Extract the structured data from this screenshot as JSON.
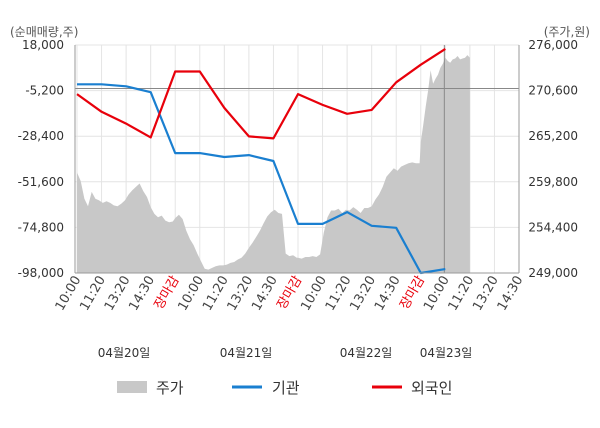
{
  "chart_data": {
    "type": "line",
    "y_left_unit": "(순매매량,주)",
    "y_right_unit": "(주가,원)",
    "y_left_ticks": [
      "18,000",
      "-5,200",
      "-28,400",
      "-51,600",
      "-74,800",
      "-98,000"
    ],
    "y_right_ticks": [
      "276,000",
      "270,600",
      "265,200",
      "259,800",
      "254,400",
      "249,000"
    ],
    "y_left_range": [
      -98000,
      18000
    ],
    "y_right_range": [
      249000,
      276000
    ],
    "x_tick_labels": [
      "10:00",
      "11:20",
      "13:20",
      "14:30",
      "장마감",
      "10:00",
      "11:20",
      "13:20",
      "14:30",
      "장마감",
      "10:00",
      "11:20",
      "13:20",
      "14:30",
      "장마감",
      "10:00",
      "11:20",
      "13:20",
      "14:30"
    ],
    "close_label": "장마감",
    "date_labels": [
      "04월20일",
      "04월21일",
      "04월22일",
      "04월23일"
    ],
    "legend": {
      "price": "주가",
      "institution": "기관",
      "foreign": "외국인"
    },
    "colors": {
      "price": "#c8c8c8",
      "institution": "#1a7fd0",
      "foreign": "#e8000b",
      "grid": "#e4e4e4",
      "close_label": "#e8000b"
    },
    "series": [
      {
        "name": "기관",
        "x": [
          0,
          1,
          2,
          3,
          4,
          5,
          6,
          7,
          8,
          9,
          10,
          11,
          12,
          13,
          14,
          15,
          16
        ],
        "values": [
          -2000,
          -2000,
          -3000,
          -6000,
          -37000,
          -37000,
          -39000,
          -38000,
          -41000,
          -73000,
          -73000,
          -67000,
          -74000,
          -75000,
          -98000,
          -96000,
          null
        ]
      },
      {
        "name": "외국인",
        "x": [
          0,
          1,
          2,
          3,
          4,
          5,
          6,
          7,
          8,
          9,
          10,
          11,
          12,
          13,
          14,
          15,
          16
        ],
        "values": [
          -7000,
          -16000,
          -22000,
          -29000,
          4500,
          4500,
          -14000,
          -28500,
          -29500,
          -7000,
          -12500,
          -17000,
          -15000,
          -1000,
          8000,
          16000,
          null
        ]
      }
    ],
    "price_series": {
      "name": "주가",
      "x": [
        0.0,
        0.15,
        0.3,
        0.45,
        0.6,
        0.75,
        0.9,
        1.05,
        1.2,
        1.35,
        1.5,
        1.65,
        1.8,
        1.95,
        2.1,
        2.25,
        2.4,
        2.55,
        2.7,
        2.85,
        3.0,
        3.15,
        3.3,
        3.45,
        3.6,
        3.75,
        3.9,
        4.0,
        4.15,
        4.3,
        4.45,
        4.6,
        4.75,
        4.9,
        5.05,
        5.2,
        5.35,
        5.5,
        5.65,
        5.8,
        5.95,
        6.1,
        6.25,
        6.4,
        6.55,
        6.7,
        6.85,
        7.0,
        7.15,
        7.3,
        7.45,
        7.6,
        7.75,
        7.9,
        8.05,
        8.2,
        8.35,
        8.5,
        8.65,
        8.8,
        8.95,
        9.0,
        9.15,
        9.3,
        9.45,
        9.6,
        9.75,
        9.9,
        10.05,
        10.2,
        10.35,
        10.5,
        10.65,
        10.8,
        10.95,
        11.1,
        11.25,
        11.4,
        11.55,
        11.7,
        11.85,
        12.0,
        12.15,
        12.3,
        12.45,
        12.6,
        12.75,
        12.9,
        13.05,
        13.2,
        13.35,
        13.5,
        13.65,
        13.8,
        13.95,
        14.0,
        14.1,
        14.2,
        14.3,
        14.4,
        14.5,
        14.6,
        14.7,
        14.8,
        14.9,
        15.0,
        15.1,
        15.2,
        15.3,
        15.4,
        15.5,
        15.6,
        15.7,
        15.8,
        15.9,
        16.0
      ],
      "values": [
        260900,
        259900,
        257800,
        256900,
        258600,
        257800,
        257600,
        257300,
        257500,
        257300,
        257000,
        256900,
        257200,
        257600,
        258300,
        258800,
        259200,
        259600,
        258700,
        258000,
        256800,
        256000,
        255600,
        255800,
        255200,
        255000,
        255100,
        255500,
        255900,
        255400,
        254000,
        253000,
        252300,
        251300,
        250400,
        249500,
        249400,
        249600,
        249800,
        249900,
        249900,
        250000,
        250200,
        250300,
        250600,
        250800,
        251300,
        252000,
        252600,
        253300,
        254000,
        254900,
        255700,
        256200,
        256500,
        256100,
        256000,
        251300,
        251000,
        251100,
        250800,
        250800,
        250700,
        250900,
        250900,
        251000,
        250900,
        251200,
        253800,
        255600,
        256400,
        256400,
        256600,
        256100,
        256500,
        256400,
        256800,
        256500,
        256100,
        256700,
        256700,
        256900,
        257700,
        258300,
        259200,
        260400,
        260900,
        261400,
        261100,
        261600,
        261800,
        262000,
        262100,
        262000,
        262000,
        264500,
        266500,
        268700,
        270600,
        273000,
        271400,
        272000,
        272500,
        273300,
        273800,
        274500,
        274100,
        273900,
        274300,
        274400,
        274700,
        274300,
        274400,
        274500,
        274800,
        274500
      ]
    }
  }
}
